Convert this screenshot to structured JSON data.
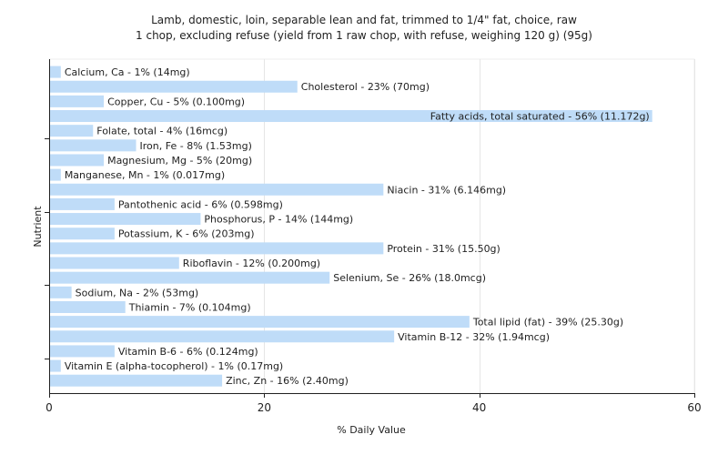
{
  "chart_data": {
    "type": "bar",
    "orientation": "horizontal",
    "title": "Lamb, domestic, loin, separable lean and fat, trimmed to 1/4\" fat, choice, raw",
    "subtitle": "1 chop, excluding refuse (yield from 1 raw chop, with refuse, weighing 120 g) (95g)",
    "xlabel": "% Daily Value",
    "ylabel": "Nutrient",
    "xlim": [
      0,
      60
    ],
    "xticks": [
      "0",
      "20",
      "40",
      "60"
    ],
    "grid": true,
    "bar_color": "#bfdcf8",
    "categories": [
      "Calcium, Ca",
      "Cholesterol",
      "Copper, Cu",
      "Fatty acids, total saturated",
      "Folate, total",
      "Iron, Fe",
      "Magnesium, Mg",
      "Manganese, Mn",
      "Niacin",
      "Pantothenic acid",
      "Phosphorus, P",
      "Potassium, K",
      "Protein",
      "Riboflavin",
      "Selenium, Se",
      "Sodium, Na",
      "Thiamin",
      "Total lipid (fat)",
      "Vitamin B-12",
      "Vitamin B-6",
      "Vitamin E (alpha-tocopherol)",
      "Zinc, Zn"
    ],
    "values": [
      1,
      23,
      5,
      56,
      4,
      8,
      5,
      1,
      31,
      6,
      14,
      6,
      31,
      12,
      26,
      2,
      7,
      39,
      32,
      6,
      1,
      16
    ],
    "labels": [
      "Calcium, Ca - 1% (14mg)",
      "Cholesterol - 23% (70mg)",
      "Copper, Cu - 5% (0.100mg)",
      "Fatty acids, total saturated - 56% (11.172g)",
      "Folate, total - 4% (16mcg)",
      "Iron, Fe - 8% (1.53mg)",
      "Magnesium, Mg - 5% (20mg)",
      "Manganese, Mn - 1% (0.017mg)",
      "Niacin - 31% (6.146mg)",
      "Pantothenic acid - 6% (0.598mg)",
      "Phosphorus, P - 14% (144mg)",
      "Potassium, K - 6% (203mg)",
      "Protein - 31% (15.50g)",
      "Riboflavin - 12% (0.200mg)",
      "Selenium, Se - 26% (18.0mcg)",
      "Sodium, Na - 2% (53mg)",
      "Thiamin - 7% (0.104mg)",
      "Total lipid (fat) - 39% (25.30g)",
      "Vitamin B-12 - 32% (1.94mcg)",
      "Vitamin B-6 - 6% (0.124mg)",
      "Vitamin E (alpha-tocopherol) - 1% (0.17mg)",
      "Zinc, Zn - 16% (2.40mg)"
    ]
  }
}
